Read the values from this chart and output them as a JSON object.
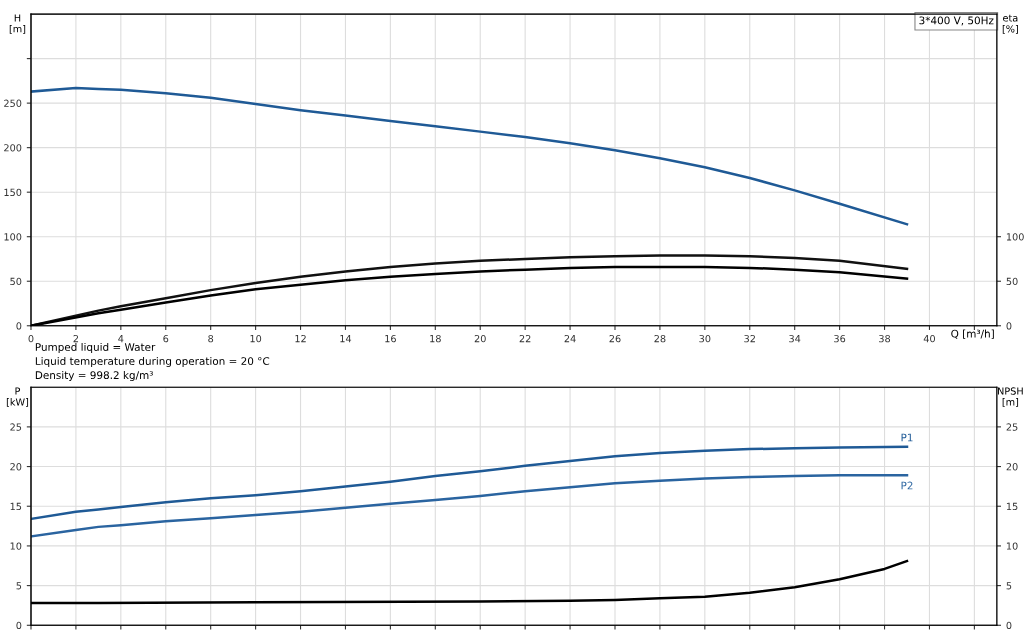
{
  "chart_data": [
    {
      "type": "line",
      "xlabel": "Q [m³/h]",
      "ylabel": "H\n[m]",
      "y2label": "eta\n[%]",
      "xlim": [
        0,
        43
      ],
      "xticks": [
        0,
        2,
        4,
        6,
        8,
        10,
        12,
        14,
        16,
        18,
        20,
        22,
        24,
        26,
        28,
        30,
        32,
        34,
        36,
        38,
        40,
        {
          "value": 42,
          "label": null
        }
      ],
      "ylim": [
        0,
        350
      ],
      "yticks": [
        0,
        50,
        100,
        150,
        200,
        250,
        {
          "value": 300,
          "label": null
        }
      ],
      "y2lim": [
        0,
        350
      ],
      "y2ticks": [
        0,
        50,
        100
      ],
      "grid": true,
      "legend": false,
      "marker": "none",
      "line_style": "solid",
      "series": [
        {
          "color": "#1f5a96",
          "x": [
            0,
            2,
            3,
            4,
            6,
            8,
            10,
            12,
            14,
            16,
            18,
            20,
            22,
            24,
            26,
            28,
            30,
            32,
            34,
            36,
            39
          ],
          "values": [
            263,
            267,
            266,
            265,
            261,
            256,
            249,
            242,
            236,
            230,
            224,
            218,
            212,
            205,
            197,
            188,
            178,
            166,
            152,
            137,
            114
          ]
        },
        {
          "color": "#111111",
          "axis": "y2",
          "x": [
            0,
            3,
            4,
            6,
            8,
            10,
            12,
            14,
            16,
            18,
            20,
            22,
            24,
            26,
            28,
            30,
            32,
            34,
            36,
            39
          ],
          "values": [
            0,
            17,
            22,
            31,
            40,
            48,
            55,
            61,
            66,
            70,
            73,
            75,
            77,
            78,
            79,
            79,
            78,
            76,
            73,
            64
          ]
        },
        {
          "color": "#000000",
          "axis": "y2",
          "x": [
            0,
            3,
            4,
            6,
            8,
            10,
            12,
            14,
            16,
            18,
            20,
            22,
            24,
            26,
            28,
            30,
            32,
            34,
            36,
            39
          ],
          "values": [
            0,
            14,
            18,
            26,
            34,
            41,
            46,
            51,
            55,
            58,
            61,
            63,
            65,
            66,
            66,
            66,
            65,
            63,
            60,
            53
          ]
        }
      ],
      "annotations": [
        "3*400 V, 50Hz",
        "Pumped liquid = Water\nLiquid temperature during operation = 20 °C\nDensity = 998.2 kg/m³"
      ]
    },
    {
      "type": "line",
      "ylabel": "P\n[kW]",
      "y2label": "NPSH\n[m]",
      "xlim": [
        0,
        43
      ],
      "xticks": [
        0,
        2,
        4,
        6,
        8,
        10,
        12,
        14,
        16,
        18,
        20,
        22,
        24,
        26,
        28,
        30,
        32,
        34,
        36,
        38,
        40,
        42
      ],
      "ylim": [
        0,
        30
      ],
      "yticks": [
        0,
        5,
        10,
        15,
        20,
        25
      ],
      "y2lim": [
        0,
        30
      ],
      "y2ticks": [
        0,
        5,
        10,
        15,
        20,
        25
      ],
      "tick_labels": "y",
      "grid": true,
      "legend": false,
      "marker": "none",
      "line_style": "solid",
      "series": [
        {
          "name": "P1",
          "color": "#1f5a96",
          "x": [
            0,
            2,
            3,
            4,
            6,
            8,
            10,
            12,
            14,
            16,
            18,
            20,
            22,
            24,
            26,
            28,
            30,
            32,
            34,
            36,
            39
          ],
          "values": [
            13.4,
            14.3,
            14.6,
            14.9,
            15.5,
            16.0,
            16.4,
            16.9,
            17.5,
            18.1,
            18.8,
            19.4,
            20.1,
            20.7,
            21.3,
            21.7,
            22.0,
            22.2,
            22.3,
            22.4,
            22.5
          ]
        },
        {
          "name": "P2",
          "color": "#2a64a0",
          "x": [
            0,
            2,
            3,
            4,
            6,
            8,
            10,
            12,
            14,
            16,
            18,
            20,
            22,
            24,
            26,
            28,
            30,
            32,
            34,
            36,
            39
          ],
          "values": [
            11.2,
            12.0,
            12.4,
            12.6,
            13.1,
            13.5,
            13.9,
            14.3,
            14.8,
            15.3,
            15.8,
            16.3,
            16.9,
            17.4,
            17.9,
            18.2,
            18.5,
            18.7,
            18.8,
            18.9,
            18.9
          ]
        },
        {
          "color": "#000000",
          "axis": "y2",
          "x": [
            0,
            3,
            10,
            20,
            24,
            26,
            28,
            30,
            32,
            34,
            36,
            38,
            39
          ],
          "values": [
            2.8,
            2.8,
            2.9,
            3.0,
            3.1,
            3.2,
            3.4,
            3.6,
            4.1,
            4.8,
            5.8,
            7.1,
            8.1
          ]
        }
      ]
    }
  ]
}
